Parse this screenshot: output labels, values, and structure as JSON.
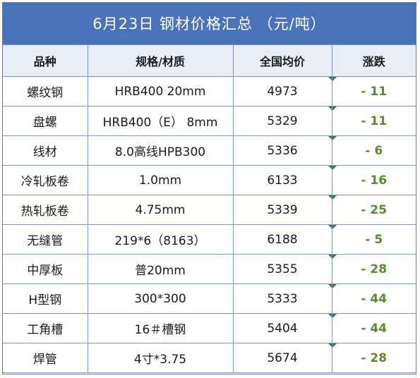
{
  "title": "6月23日 钢材价格汇总 （元/吨）",
  "headers": {
    "product": "品种",
    "spec": "规格/材质",
    "avg_price": "全国均价",
    "change": "涨跌"
  },
  "rows": [
    {
      "product": "螺纹钢",
      "spec": "HRB400 20mm",
      "avg_price": "4973",
      "change": "- 11"
    },
    {
      "product": "盘螺",
      "spec": "HRB400（E） 8mm",
      "avg_price": "5329",
      "change": "- 11"
    },
    {
      "product": "线材",
      "spec": "8.0高线HPB300",
      "avg_price": "5336",
      "change": "- 6"
    },
    {
      "product": "冷轧板卷",
      "spec": "1.0mm",
      "avg_price": "6133",
      "change": "- 16"
    },
    {
      "product": "热轧板卷",
      "spec": "4.75mm",
      "avg_price": "5339",
      "change": "- 25"
    },
    {
      "product": "无缝管",
      "spec": "219*6（8163）",
      "avg_price": "6188",
      "change": "- 5"
    },
    {
      "product": "中厚板",
      "spec": "普20mm",
      "avg_price": "5355",
      "change": "- 28"
    },
    {
      "product": "H型钢",
      "spec": "300*300",
      "avg_price": "5333",
      "change": "- 44"
    },
    {
      "product": "工角槽",
      "spec": "16＃槽钢",
      "avg_price": "5404",
      "change": "- 44"
    },
    {
      "product": "焊管",
      "spec": "4寸*3.75",
      "avg_price": "5674",
      "change": "- 28"
    }
  ],
  "colors": {
    "title_bg": "#4a73ba",
    "header_bg": "#e7eef8",
    "change_text": "#5a8a32",
    "border": "#7b96c8"
  }
}
